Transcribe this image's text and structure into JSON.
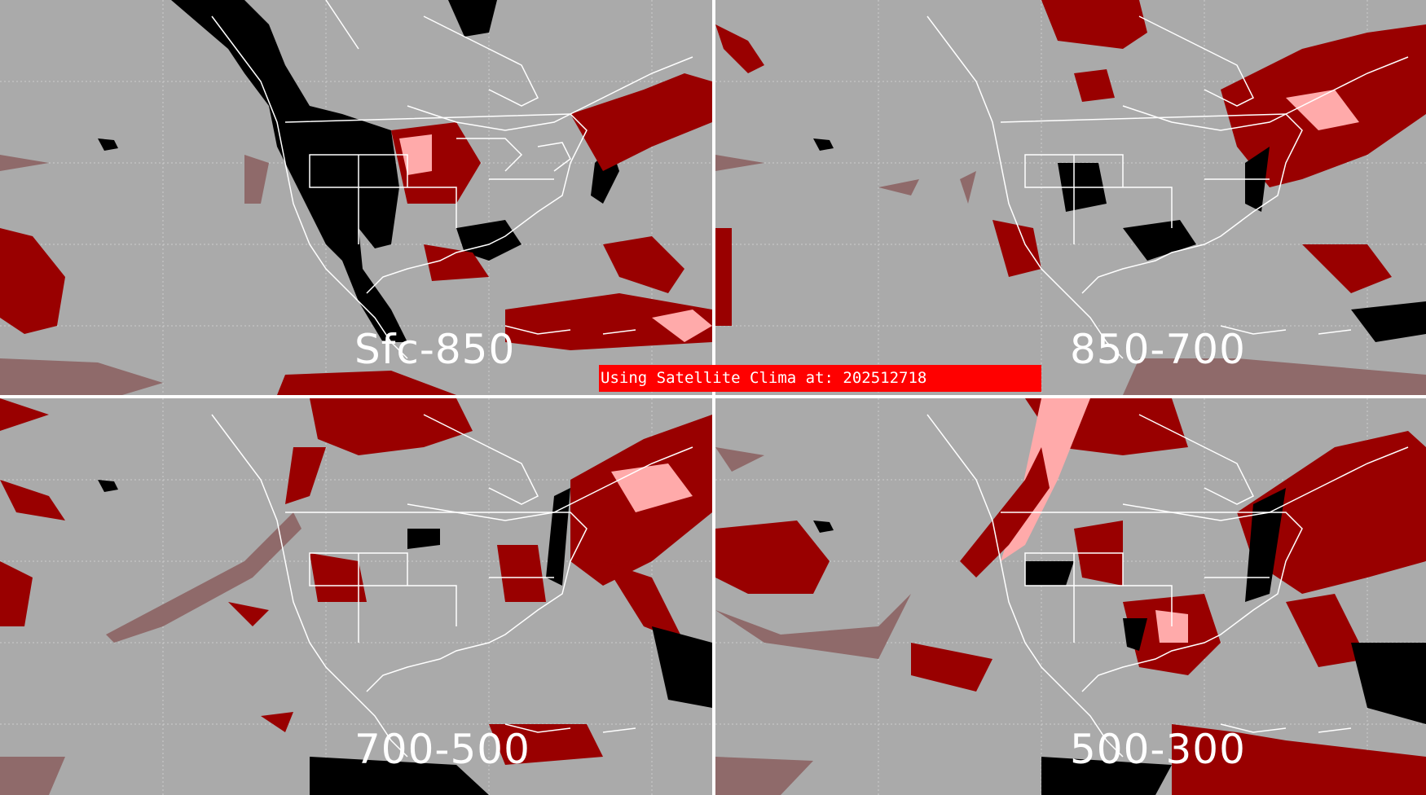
{
  "panels": [
    {
      "id": "p-tl",
      "label": "Sfc-850"
    },
    {
      "id": "p-tr",
      "label": "850-700"
    },
    {
      "id": "p-bl",
      "label": "700-500"
    },
    {
      "id": "p-br",
      "label": "500-300"
    }
  ],
  "banner": {
    "text": "Using Satellite Clima at: 202512718"
  },
  "colors": {
    "background_gray": "#aaaaaa",
    "outline_white": "#ffffff",
    "dark_red": "#990000",
    "muted_red": "#8f6a6a",
    "pink": "#ffaaaa",
    "black": "#000000",
    "banner_red": "#ff0000"
  }
}
